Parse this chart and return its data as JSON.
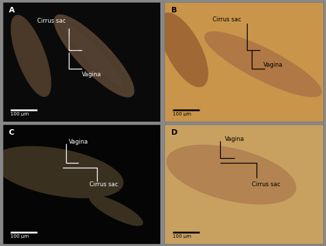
{
  "panels": [
    "A",
    "B",
    "C",
    "D"
  ],
  "bg_colors": {
    "A": "#0a0a0a",
    "B": "#c8954a",
    "C": "#050505",
    "D": "#c8a060"
  },
  "label_colors": {
    "A": "white",
    "B": "black",
    "C": "white",
    "D": "black"
  },
  "scale_bar_colors": {
    "A": "white",
    "B": "black",
    "C": "white",
    "D": "black"
  },
  "scale_text": "100 μm",
  "figure_width": 4.74,
  "figure_height": 3.58,
  "panel_label_fontsize": 8,
  "annotation_fontsize": 6.0,
  "scale_fontsize": 5.0
}
